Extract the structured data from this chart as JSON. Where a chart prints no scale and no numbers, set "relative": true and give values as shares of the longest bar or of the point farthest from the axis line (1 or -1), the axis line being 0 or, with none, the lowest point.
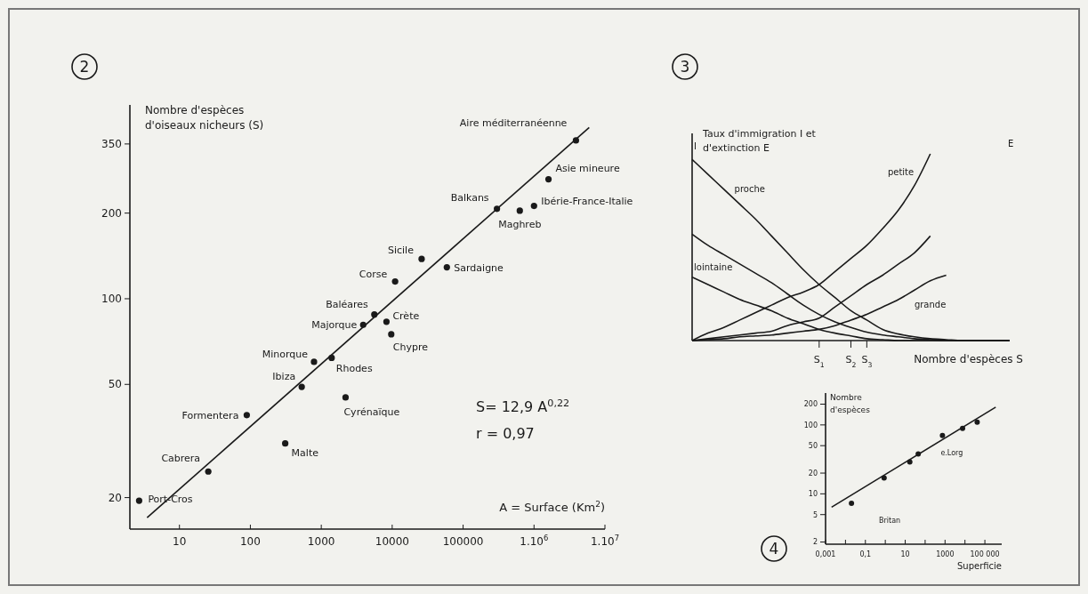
{
  "chart_data": [
    {
      "type": "scatter",
      "title": "2",
      "xlabel": "A = Surface (Km$^{2}$)",
      "ylabel": "Nombre d'espèces d'oiseaux nicheurs (S)",
      "log": "xy",
      "xlim": [
        2,
        10000000
      ],
      "ylim": [
        15.5,
        480
      ],
      "xticks": [
        10,
        100,
        1000,
        10000,
        100000,
        {
          "value": 1000000,
          "label": "1.10$^{6}$"
        },
        {
          "value": 10000000,
          "label": "1.10$^{7}$"
        }
      ],
      "yticks": [
        20,
        50,
        100,
        200,
        350
      ],
      "series": [
        {
          "color": "#1a1a1a",
          "marker": "circle",
          "x": [
            3900000,
            1600000,
            300000,
            1000000,
            630000,
            26000,
            59000,
            11000,
            5600,
            8300,
            3900,
            9700,
            790,
            1400,
            530,
            2200,
            89,
            310,
            25.5,
            2.7
          ],
          "values": [
            360,
            263,
            207,
            212,
            204,
            138,
            129,
            115,
            88,
            83,
            81,
            75,
            60,
            62,
            49,
            45,
            39,
            31,
            24.7,
            19.5
          ]
        },
        {
          "type": "line",
          "color": "#1a1a1a",
          "x": [
            3.5,
            6000000
          ],
          "values": [
            17,
            400
          ]
        }
      ],
      "annotations": [
        {
          "text": "Aire méditerranéenne",
          "x": 3900000,
          "y": 360
        },
        {
          "text": "Asie mineure",
          "x": 1600000,
          "y": 263
        },
        {
          "text": "Balkans",
          "x": 300000,
          "y": 207
        },
        {
          "text": "Ibérie-France-Italie",
          "x": 1000000,
          "y": 212
        },
        {
          "text": "Maghreb",
          "x": 630000,
          "y": 204
        },
        {
          "text": "Sicile",
          "x": 26000,
          "y": 138
        },
        {
          "text": "Sardaigne",
          "x": 59000,
          "y": 129
        },
        {
          "text": "Corse",
          "x": 11000,
          "y": 115
        },
        {
          "text": "Baléares",
          "x": 5600,
          "y": 88
        },
        {
          "text": "Crète",
          "x": 8300,
          "y": 83
        },
        {
          "text": "Majorque",
          "x": 3900,
          "y": 81
        },
        {
          "text": "Chypre",
          "x": 9700,
          "y": 75
        },
        {
          "text": "Minorque",
          "x": 790,
          "y": 60
        },
        {
          "text": "Rhodes",
          "x": 1400,
          "y": 62
        },
        {
          "text": "Ibiza",
          "x": 530,
          "y": 49
        },
        {
          "text": "Cyrénaïque",
          "x": 2200,
          "y": 45
        },
        {
          "text": "Formentera",
          "x": 89,
          "y": 39
        },
        {
          "text": "Malte",
          "x": 310,
          "y": 31
        },
        {
          "text": "Cabrera",
          "x": 25.5,
          "y": 24.7
        },
        {
          "text": "Port-Cros",
          "x": 2.7,
          "y": 19.5
        },
        "S= 12,9 A$^{0,22}$",
        "r = 0,97"
      ]
    },
    {
      "type": "line",
      "title": "3",
      "xlabel": "Nombre d'espèces S",
      "ylabel": "Taux d'immigration I et d'extinction E",
      "relative": true,
      "categories": [
        null,
        null,
        null,
        null,
        null,
        null,
        null,
        null,
        "S$_{1}$",
        null,
        "S$_{2}$",
        "S$_{3}$",
        null,
        null,
        null,
        null,
        null,
        null,
        null,
        null,
        null
      ],
      "series": [
        {
          "name": "proche",
          "color": "#1a1a1a",
          "values": [
            0.97,
            0.89,
            0.81,
            0.73,
            0.65,
            0.56,
            0.47,
            0.38,
            0.3,
            0.23,
            0.16,
            0.11,
            0.06,
            0.035,
            0.02,
            0.01,
            0.005,
            0,
            0,
            0,
            0
          ]
        },
        {
          "color": "#1a1a1a",
          "values": [
            0.57,
            0.51,
            0.46,
            0.41,
            0.36,
            0.31,
            0.25,
            0.19,
            0.14,
            0.1,
            0.07,
            0.045,
            0.03,
            0.02,
            0.01,
            0.005,
            0,
            0,
            0,
            0,
            0
          ]
        },
        {
          "name": "lointaine",
          "color": "#1a1a1a",
          "values": [
            0.34,
            0.3,
            0.26,
            0.22,
            0.19,
            0.16,
            0.12,
            0.09,
            0.06,
            0.04,
            0.025,
            0.01,
            0.005,
            0,
            0,
            0,
            0,
            0,
            0,
            0,
            0
          ]
        },
        {
          "name": "petite",
          "color": "#1a1a1a",
          "values": [
            0,
            0.04,
            0.07,
            0.11,
            0.15,
            0.19,
            0.23,
            0.26,
            0.3,
            0.37,
            0.44,
            0.51,
            0.6,
            0.7,
            0.83,
            1,
            null,
            null,
            null,
            null,
            null
          ]
        },
        {
          "color": "#1a1a1a",
          "values": [
            0,
            0.01,
            0.02,
            0.03,
            0.04,
            0.05,
            0.08,
            0.1,
            0.12,
            0.18,
            0.24,
            0.3,
            0.35,
            0.41,
            0.47,
            0.56,
            null,
            null,
            null,
            null,
            null
          ]
        },
        {
          "name": "grande",
          "color": "#1a1a1a",
          "values": [
            0,
            0.005,
            0.01,
            0.02,
            0.025,
            0.03,
            0.04,
            0.05,
            0.06,
            0.08,
            0.11,
            0.14,
            0.18,
            0.22,
            0.27,
            0.32,
            0.35,
            null,
            null,
            null,
            null
          ]
        }
      ],
      "annotations": [
        "I",
        "E"
      ]
    },
    {
      "type": "scatter",
      "title": "4",
      "xlabel": "Superficie",
      "ylabel": "Nombre d'espèces",
      "log": "xy",
      "xlim": [
        0.001,
        700000
      ],
      "ylim": [
        1.86,
        290
      ],
      "xticks": [
        {
          "value": 0.001,
          "label": "0,001"
        },
        {
          "value": 0.01,
          "label": null
        },
        {
          "value": 0.1,
          "label": "0,1"
        },
        {
          "value": 1,
          "label": null
        },
        10,
        {
          "value": 100,
          "label": null
        },
        1000,
        {
          "value": 10000,
          "label": null
        },
        {
          "value": 100000,
          "label": "100 000"
        }
      ],
      "yticks": [
        2,
        5,
        10,
        20,
        50,
        100,
        200
      ],
      "series": [
        {
          "color": "#1a1a1a",
          "marker": "circle",
          "x": [
            0.02,
            0.87,
            17,
            45,
            740,
            7600,
            41000
          ],
          "values": [
            7.3,
            17,
            29,
            38,
            70,
            89,
            110
          ]
        },
        {
          "type": "line",
          "color": "#1a1a1a",
          "x": [
            0.002,
            350000
          ],
          "values": [
            6.4,
            181
          ]
        }
      ],
      "annotations": [
        {
          "text": "e.Lorg",
          "x": 740,
          "y": 70
        },
        "Britan"
      ]
    }
  ]
}
